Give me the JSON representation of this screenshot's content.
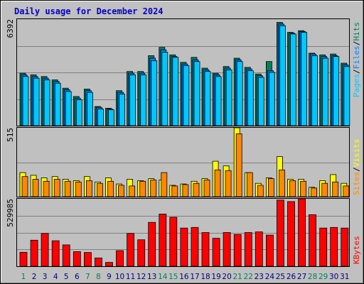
{
  "title": "Daily usage for December 2024",
  "colors": {
    "hits": "#00805c",
    "files": "#0080ff",
    "pages": "#00c8ff",
    "visits": "#ffff00",
    "sites": "#ff8800",
    "kbytes": "#ff0000",
    "weekend": "#00805c",
    "weekday": "#000080"
  },
  "chart_data": [
    {
      "type": "bar",
      "panel": "hits-files-pages",
      "y_max_label": "6392",
      "ylim": [
        0,
        6392
      ],
      "legend": [
        "Pages",
        "/",
        "Files",
        "/",
        "Hits"
      ],
      "categories": [
        "1",
        "2",
        "3",
        "4",
        "5",
        "6",
        "7",
        "8",
        "9",
        "10",
        "11",
        "12",
        "13",
        "14",
        "15",
        "16",
        "17",
        "18",
        "19",
        "20",
        "21",
        "22",
        "23",
        "24",
        "25",
        "26",
        "27",
        "28",
        "29",
        "30",
        "31"
      ],
      "series": [
        {
          "name": "Hits",
          "values": [
            3150,
            3050,
            2950,
            2750,
            2250,
            1750,
            2200,
            1150,
            1050,
            2100,
            3250,
            3250,
            4200,
            4700,
            4250,
            3800,
            4100,
            3450,
            3150,
            3550,
            4050,
            3500,
            3100,
            3850,
            6200,
            5600,
            5700,
            4350,
            4250,
            4300,
            3750
          ]
        },
        {
          "name": "Files",
          "values": [
            3050,
            2950,
            2850,
            2650,
            2150,
            1650,
            2100,
            1100,
            1000,
            2000,
            3150,
            3150,
            4050,
            4550,
            4150,
            3700,
            3950,
            3350,
            3050,
            3450,
            3950,
            3400,
            3000,
            3300,
            6100,
            5550,
            5650,
            4300,
            4150,
            4200,
            3650
          ]
        },
        {
          "name": "Pages",
          "values": [
            2950,
            2850,
            2750,
            2550,
            2050,
            1550,
            2000,
            1000,
            950,
            1900,
            3050,
            3050,
            3900,
            4400,
            4100,
            3600,
            3850,
            3250,
            2950,
            3350,
            3850,
            3300,
            2900,
            3200,
            6000,
            5500,
            5600,
            4200,
            4050,
            4150,
            3550
          ]
        }
      ]
    },
    {
      "type": "bar",
      "panel": "visits-sites",
      "y_max_label": "515",
      "ylim": [
        0,
        515
      ],
      "legend": [
        "Sites",
        "/",
        "Visits"
      ],
      "categories": [
        "1",
        "2",
        "3",
        "4",
        "5",
        "6",
        "7",
        "8",
        "9",
        "10",
        "11",
        "12",
        "13",
        "14",
        "15",
        "16",
        "17",
        "18",
        "19",
        "20",
        "21",
        "22",
        "23",
        "24",
        "25",
        "26",
        "27",
        "28",
        "29",
        "30",
        "31"
      ],
      "series": [
        {
          "name": "Visits",
          "values": [
            180,
            160,
            140,
            150,
            130,
            120,
            150,
            110,
            140,
            95,
            130,
            120,
            135,
            125,
            85,
            95,
            115,
            135,
            265,
            230,
            515,
            180,
            100,
            140,
            300,
            130,
            130,
            70,
            120,
            165,
            100
          ]
        },
        {
          "name": "Sites",
          "values": [
            150,
            130,
            115,
            130,
            115,
            110,
            120,
            100,
            115,
            85,
            80,
            115,
            125,
            180,
            80,
            90,
            100,
            125,
            200,
            195,
            470,
            180,
            85,
            135,
            200,
            120,
            115,
            65,
            100,
            110,
            80
          ]
        }
      ]
    },
    {
      "type": "bar",
      "panel": "kbytes",
      "y_max_label": "529985",
      "ylim": [
        0,
        529985
      ],
      "legend": [
        "KBytes"
      ],
      "categories": [
        "1",
        "2",
        "3",
        "4",
        "5",
        "6",
        "7",
        "8",
        "9",
        "10",
        "11",
        "12",
        "13",
        "14",
        "15",
        "16",
        "17",
        "18",
        "19",
        "20",
        "21",
        "22",
        "23",
        "24",
        "25",
        "26",
        "27",
        "28",
        "29",
        "30",
        "31"
      ],
      "series": [
        {
          "name": "KBytes",
          "values": [
            110000,
            205000,
            258000,
            200000,
            168000,
            115000,
            108000,
            65000,
            30000,
            123000,
            258000,
            208000,
            345000,
            410000,
            385000,
            300000,
            305000,
            265000,
            220000,
            265000,
            250000,
            265000,
            270000,
            245000,
            520000,
            508000,
            530000,
            405000,
            300000,
            305000,
            300000
          ]
        }
      ]
    }
  ]
}
